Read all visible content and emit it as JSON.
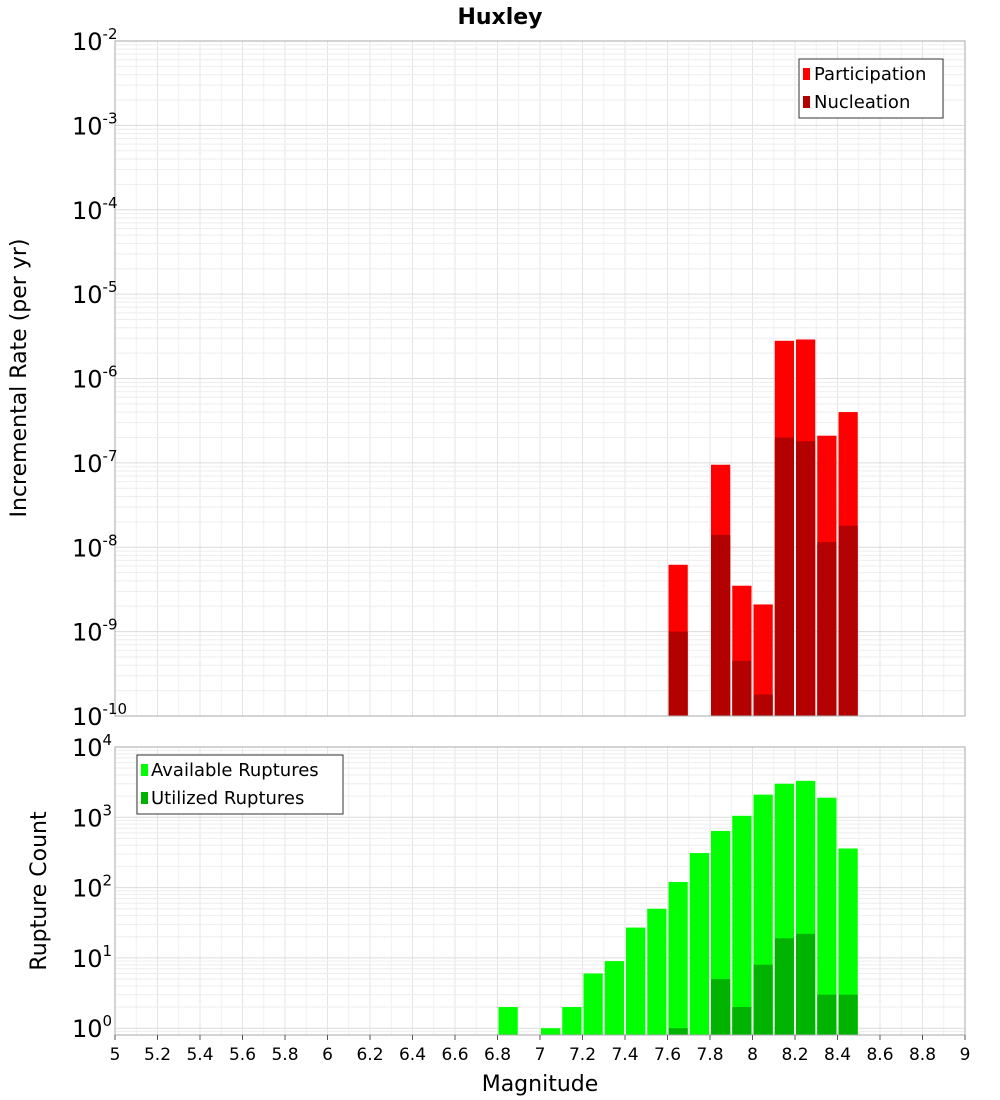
{
  "chart_data": [
    {
      "type": "bar",
      "title": "Huxley",
      "xlabel": "",
      "ylabel": "Incremental Rate (per yr)",
      "xlim": [
        5,
        9
      ],
      "ylim": [
        1e-10,
        0.01
      ],
      "yscale": "log",
      "grid": true,
      "legend_position": "top-right",
      "bar_width": 0.1,
      "y_ticks": [
        {
          "base": "10",
          "exp": "-2"
        },
        {
          "base": "10",
          "exp": "-3"
        },
        {
          "base": "10",
          "exp": "-4"
        },
        {
          "base": "10",
          "exp": "-5"
        },
        {
          "base": "10",
          "exp": "-6"
        },
        {
          "base": "10",
          "exp": "-7"
        },
        {
          "base": "10",
          "exp": "-8"
        },
        {
          "base": "10",
          "exp": "-9"
        },
        {
          "base": "10",
          "exp": "-10"
        }
      ],
      "series": [
        {
          "name": "Participation",
          "color": "#ff0000",
          "x": [
            7.65,
            7.85,
            7.95,
            8.05,
            8.15,
            8.25,
            8.35,
            8.45
          ],
          "values": [
            6.2e-09,
            9.5e-08,
            3.5e-09,
            2.1e-09,
            2.8e-06,
            2.9e-06,
            2.1e-07,
            4e-07
          ]
        },
        {
          "name": "Nucleation",
          "color": "#b30000",
          "x": [
            7.65,
            7.85,
            7.95,
            8.05,
            8.15,
            8.25,
            8.35,
            8.45
          ],
          "values": [
            1e-09,
            1.4e-08,
            4.5e-10,
            1.8e-10,
            2e-07,
            1.8e-07,
            1.15e-08,
            1.8e-08
          ]
        }
      ]
    },
    {
      "type": "bar",
      "title": "",
      "xlabel": "Magnitude",
      "ylabel": "Rupture Count",
      "xlim": [
        5,
        9
      ],
      "ylim": [
        0.8,
        10000
      ],
      "yscale": "log",
      "grid": true,
      "legend_position": "top-left",
      "bar_width": 0.1,
      "x_ticks": [
        "5",
        "5.2",
        "5.4",
        "5.6",
        "5.8",
        "6",
        "6.2",
        "6.4",
        "6.6",
        "6.8",
        "7",
        "7.2",
        "7.4",
        "7.6",
        "7.8",
        "8",
        "8.2",
        "8.4",
        "8.6",
        "8.8",
        "9"
      ],
      "y_ticks": [
        {
          "base": "10",
          "exp": "4"
        },
        {
          "base": "10",
          "exp": "3"
        },
        {
          "base": "10",
          "exp": "2"
        },
        {
          "base": "10",
          "exp": "1"
        },
        {
          "base": "10",
          "exp": "0"
        }
      ],
      "series": [
        {
          "name": "Available Ruptures",
          "color": "#00ff00",
          "x": [
            6.85,
            7.05,
            7.15,
            7.25,
            7.35,
            7.45,
            7.55,
            7.65,
            7.75,
            7.85,
            7.95,
            8.05,
            8.15,
            8.25,
            8.35,
            8.45
          ],
          "values": [
            2,
            1,
            2,
            6,
            9,
            27,
            50,
            120,
            310,
            640,
            1050,
            2100,
            3000,
            3300,
            1900,
            360
          ]
        },
        {
          "name": "Utilized Ruptures",
          "color": "#00b300",
          "x": [
            7.65,
            7.85,
            7.95,
            8.05,
            8.15,
            8.25,
            8.35,
            8.45
          ],
          "values": [
            1,
            5,
            2,
            8,
            19,
            22,
            3,
            3
          ]
        }
      ]
    }
  ]
}
